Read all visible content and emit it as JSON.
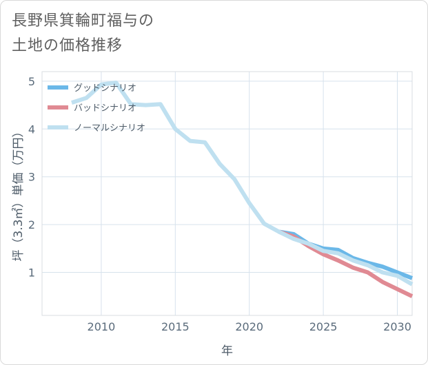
{
  "title_lines": [
    "長野県箕輪町福与の",
    "土地の価格推移"
  ],
  "chart_data": {
    "type": "line",
    "xlabel": "年",
    "ylabel": "坪（3.3㎡）単価（万円）",
    "xlim": [
      2006,
      2031
    ],
    "ylim": [
      0.1,
      5.2
    ],
    "x_ticks": [
      2010,
      2015,
      2020,
      2025,
      2030
    ],
    "y_ticks": [
      1,
      2,
      3,
      4,
      5
    ],
    "grid": true,
    "legend_position": "top-left",
    "series": [
      {
        "name": "グッドシナリオ",
        "color": "#6bb8e8",
        "x": [
          2022,
          2023,
          2024,
          2025,
          2026,
          2027,
          2028,
          2029,
          2030,
          2031
        ],
        "values": [
          1.85,
          1.8,
          1.6,
          1.5,
          1.47,
          1.3,
          1.2,
          1.12,
          1.0,
          0.88
        ]
      },
      {
        "name": "バッドシナリオ",
        "color": "#e08a93",
        "x": [
          2022,
          2023,
          2024,
          2025,
          2026,
          2027,
          2028,
          2029,
          2030,
          2031
        ],
        "values": [
          1.85,
          1.75,
          1.55,
          1.38,
          1.25,
          1.1,
          1.0,
          0.8,
          0.65,
          0.5
        ]
      },
      {
        "name": "ノーマルシナリオ",
        "color": "#bfe0f0",
        "x": [
          2008,
          2009,
          2010,
          2011,
          2012,
          2013,
          2014,
          2015,
          2016,
          2017,
          2018,
          2019,
          2020,
          2021,
          2022,
          2023,
          2024,
          2025,
          2026,
          2027,
          2028,
          2029,
          2030,
          2031
        ],
        "values": [
          4.55,
          4.65,
          4.93,
          4.97,
          4.52,
          4.5,
          4.52,
          4.0,
          3.75,
          3.72,
          3.27,
          2.95,
          2.45,
          2.02,
          1.85,
          1.7,
          1.6,
          1.45,
          1.4,
          1.25,
          1.15,
          1.0,
          0.93,
          0.75
        ]
      }
    ]
  }
}
